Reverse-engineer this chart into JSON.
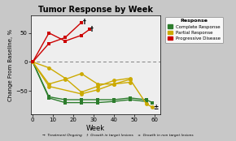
{
  "title": "Tumor Response by Week",
  "xlabel": "Week",
  "ylabel": "Change From Baseline, %",
  "background_color": "#c8c8c8",
  "plot_bg_color": "#eeeeee",
  "xlim": [
    -1,
    63
  ],
  "ylim": [
    -90,
    80
  ],
  "xticks": [
    0,
    10,
    20,
    30,
    40,
    50,
    60
  ],
  "yticks": [
    -50,
    0,
    50
  ],
  "legend_title": "Response",
  "legend_labels": [
    "Complete Response",
    "Partial Response",
    "Progressive Disease"
  ],
  "legend_colors": [
    "#2d7d2d",
    "#ccaa00",
    "#cc0000"
  ],
  "footnote": "→  Treatment Ongoing    †  Growth in target lesions    ±  Growth in non target lesions",
  "green_lines": [
    {
      "x": [
        0,
        8,
        16,
        24,
        32,
        40,
        48,
        56
      ],
      "y": [
        0,
        -62,
        -70,
        -70,
        -70,
        -68,
        -65,
        -68
      ]
    },
    {
      "x": [
        0,
        8,
        16,
        24,
        32,
        40,
        48,
        56,
        59
      ],
      "y": [
        0,
        -60,
        -65,
        -65,
        -65,
        -65,
        -62,
        -65,
        -70
      ]
    }
  ],
  "yellow_lines": [
    {
      "x": [
        0,
        8,
        16,
        24,
        32,
        40,
        48,
        56,
        59
      ],
      "y": [
        0,
        -38,
        -30,
        -20,
        -38,
        -38,
        -30,
        -72,
        -78
      ],
      "end_symbol": "±"
    },
    {
      "x": [
        0,
        8,
        16,
        24,
        32,
        40,
        48
      ],
      "y": [
        0,
        -10,
        -28,
        -52,
        -42,
        -32,
        -28
      ]
    },
    {
      "x": [
        0,
        8,
        24,
        32,
        40,
        48
      ],
      "y": [
        0,
        -42,
        -55,
        -48,
        -38,
        -35
      ]
    }
  ],
  "red_lines": [
    {
      "x": [
        0,
        8,
        16,
        24
      ],
      "y": [
        0,
        32,
        42,
        68
      ],
      "end_symbol": "†"
    },
    {
      "x": [
        0,
        8,
        16,
        24,
        28
      ],
      "y": [
        0,
        50,
        36,
        46,
        56
      ],
      "end_symbol": "†"
    }
  ],
  "green_color": "#2d7d2d",
  "yellow_color": "#ccaa00",
  "red_color": "#cc0000",
  "marker_size": 3.5,
  "linewidth": 1.0
}
